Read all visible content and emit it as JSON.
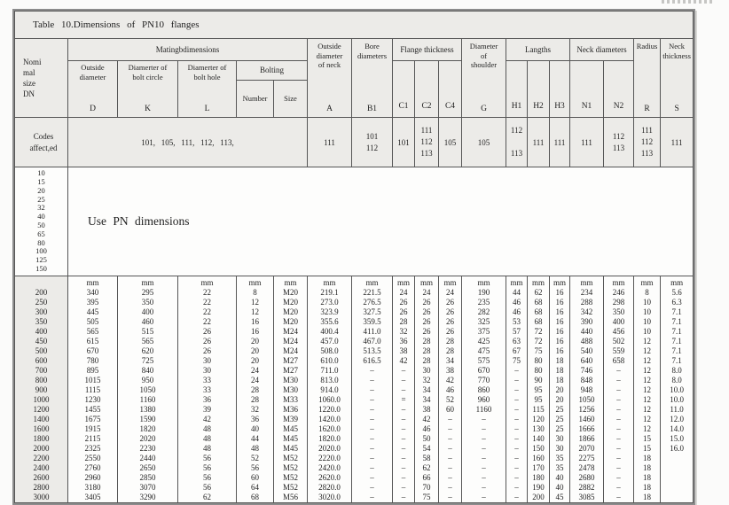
{
  "page": {
    "edge_fragment": "illegible-gray-text-strip"
  },
  "table": {
    "title": "Table 10.Dimensions of PN10 flanges",
    "header": {
      "nominal": [
        "Nomi",
        "mal",
        "size",
        "DN"
      ],
      "mating": "Matingbdimensions",
      "outside_d_label": [
        "Outside",
        "diameter"
      ],
      "outside_d_letter": "D",
      "bolt_circle_label": [
        "Diamerter of",
        "bolt circle"
      ],
      "bolt_circle_letter": "K",
      "bolt_hole_label": [
        "Diamerter of",
        "bolt hole"
      ],
      "bolt_hole_letter": "L",
      "bolting": "Bolting",
      "number": "Number",
      "size": "Size",
      "neck_od_label": [
        "Outside",
        "diameter",
        "of neck"
      ],
      "neck_od_letter": "A",
      "bore_label": [
        "Bore",
        "diameters"
      ],
      "bore_letter": "B1",
      "flange_thickness": "Flange thickness",
      "c1": "C1",
      "c2": "C2",
      "c4": "C4",
      "shoulder_label": [
        "Diameter",
        "of",
        "shoulder"
      ],
      "shoulder_letter": "G",
      "langths": "Langths",
      "h1": "H1",
      "h2": "H2",
      "h3": "H3",
      "neck_diameters": "Neck diameters",
      "n1": "N1",
      "n2": "N2",
      "radius_label": [
        "Radius"
      ],
      "radius_letter": "R",
      "neck_thickness_label": [
        "Neck",
        "thickness"
      ],
      "neck_thickness_letter": "S"
    },
    "codes_row": {
      "label": [
        "Codes",
        "affect,ed"
      ],
      "mating": "101,   105,   111,   112,   113,",
      "a": "111",
      "b1": [
        "101",
        "112"
      ],
      "c1": "101",
      "c2": [
        "111",
        "112",
        "113"
      ],
      "c4": "105",
      "g": "105",
      "h1": [
        "112",
        "",
        "113"
      ],
      "h2": "111",
      "h3": "111",
      "n1": "111",
      "n2": [
        "112",
        "113"
      ],
      "r": [
        "111",
        "112",
        "113"
      ],
      "s": "111"
    },
    "pn_row": {
      "dn_values": [
        "10",
        "15",
        "20",
        "25",
        "32",
        "40",
        "50",
        "65",
        "80",
        "100",
        "125",
        "150"
      ],
      "note": "Use PN dimensions"
    },
    "data": {
      "dn": [
        "",
        "200",
        "250",
        "300",
        "350",
        "400",
        "450",
        "500",
        "600",
        "700",
        "800",
        "900",
        "1000",
        "1200",
        "1400",
        "1600",
        "1800",
        "2000",
        "2200",
        "2400",
        "2600",
        "2800",
        "3000"
      ],
      "d": [
        "mm",
        "340",
        "395",
        "445",
        "505",
        "565",
        "615",
        "670",
        "780",
        "895",
        "1015",
        "1115",
        "1230",
        "1455",
        "1675",
        "1915",
        "2115",
        "2325",
        "2550",
        "2760",
        "2960",
        "3180",
        "3405"
      ],
      "k": [
        "mm",
        "295",
        "350",
        "400",
        "460",
        "515",
        "565",
        "620",
        "725",
        "840",
        "950",
        "1050",
        "1160",
        "1380",
        "1590",
        "1820",
        "2020",
        "2230",
        "2440",
        "2650",
        "2850",
        "3070",
        "3290"
      ],
      "l": [
        "mm",
        "22",
        "22",
        "22",
        "22",
        "26",
        "26",
        "26",
        "30",
        "30",
        "33",
        "33",
        "36",
        "39",
        "42",
        "48",
        "48",
        "48",
        "56",
        "56",
        "56",
        "56",
        "62"
      ],
      "number": [
        "mm",
        "8",
        "12",
        "12",
        "16",
        "16",
        "20",
        "20",
        "20",
        "24",
        "24",
        "28",
        "28",
        "32",
        "36",
        "40",
        "44",
        "48",
        "52",
        "56",
        "60",
        "64",
        "68"
      ],
      "size": [
        "mm",
        "M20",
        "M20",
        "M20",
        "M20",
        "M24",
        "M24",
        "M24",
        "M27",
        "M27",
        "M30",
        "M30",
        "M33",
        "M36",
        "M39",
        "M45",
        "M45",
        "M45",
        "M52",
        "M52",
        "M52",
        "M52",
        "M56"
      ],
      "a": [
        "mm",
        "219.1",
        "273.0",
        "323.9",
        "355.6",
        "400.4",
        "457.0",
        "508.0",
        "610.0",
        "711.0",
        "813.0",
        "914.0",
        "1060.0",
        "1220.0",
        "1420.0",
        "1620.0",
        "1820.0",
        "2020.0",
        "2220.0",
        "2420.0",
        "2620.0",
        "2820.0",
        "3020.0"
      ],
      "b1": [
        "mm",
        "221.5",
        "276.5",
        "327.5",
        "359.5",
        "411.0",
        "467.0",
        "513.5",
        "616.5",
        "–",
        "–",
        "–",
        "–",
        "–",
        "–",
        "–",
        "–",
        "–",
        "–",
        "–",
        "–",
        "–",
        "–"
      ],
      "c1": [
        "mm",
        "24",
        "26",
        "26",
        "28",
        "32",
        "36",
        "38",
        "42",
        "–",
        "–",
        "–",
        "=",
        "–",
        "–",
        "–",
        "–",
        "–",
        "–",
        "–",
        "–",
        "–",
        "–"
      ],
      "c2": [
        "mm",
        "24",
        "26",
        "26",
        "26",
        "26",
        "28",
        "28",
        "28",
        "30",
        "32",
        "34",
        "34",
        "38",
        "42",
        "46",
        "50",
        "54",
        "58",
        "62",
        "66",
        "70",
        "75"
      ],
      "c4": [
        "mm",
        "24",
        "26",
        "26",
        "26",
        "26",
        "28",
        "28",
        "34",
        "38",
        "42",
        "46",
        "52",
        "60",
        "–",
        "–",
        "–",
        "–",
        "–",
        "–",
        "–",
        "–",
        "–"
      ],
      "g": [
        "mm",
        "190",
        "235",
        "282",
        "325",
        "375",
        "425",
        "475",
        "575",
        "670",
        "770",
        "860",
        "960",
        "1160",
        "–",
        "–",
        "–",
        "–",
        "–",
        "–",
        "–",
        "–",
        "–"
      ],
      "h1": [
        "mm",
        "44",
        "46",
        "46",
        "53",
        "57",
        "63",
        "67",
        "75",
        "–",
        "–",
        "–",
        "–",
        "–",
        "–",
        "–",
        "–",
        "–",
        "–",
        "–",
        "–",
        "–",
        "–"
      ],
      "h2": [
        "mm",
        "62",
        "68",
        "68",
        "68",
        "72",
        "72",
        "75",
        "80",
        "80",
        "90",
        "95",
        "95",
        "115",
        "120",
        "130",
        "140",
        "150",
        "160",
        "170",
        "180",
        "190",
        "200"
      ],
      "h3": [
        "mm",
        "16",
        "16",
        "16",
        "16",
        "16",
        "16",
        "16",
        "18",
        "18",
        "18",
        "20",
        "20",
        "25",
        "25",
        "25",
        "30",
        "30",
        "35",
        "35",
        "40",
        "40",
        "45"
      ],
      "n1": [
        "mm",
        "234",
        "288",
        "342",
        "390",
        "440",
        "488",
        "540",
        "640",
        "746",
        "848",
        "948",
        "1050",
        "1256",
        "1460",
        "1666",
        "1866",
        "2070",
        "2275",
        "2478",
        "2680",
        "2882",
        "3085"
      ],
      "n2": [
        "mm",
        "246",
        "298",
        "350",
        "400",
        "456",
        "502",
        "559",
        "658",
        "–",
        "–",
        "–",
        "–",
        "–",
        "–",
        "–",
        "–",
        "–",
        "–",
        "–",
        "–",
        "–",
        "–"
      ],
      "r": [
        "mm",
        "8",
        "10",
        "10",
        "10",
        "10",
        "12",
        "12",
        "12",
        "12",
        "12",
        "12",
        "12",
        "12",
        "12",
        "12",
        "15",
        "15",
        "18",
        "18",
        "18",
        "18",
        "18"
      ],
      "s": [
        "mm",
        "5.6",
        "6.3",
        "7.1",
        "7.1",
        "7.1",
        "7.1",
        "7.1",
        "7.1",
        "8.0",
        "8.0",
        "10.0",
        "10.0",
        "11.0",
        "12.0",
        "14.0",
        "15.0",
        "16.0",
        "",
        "",
        "",
        "",
        ""
      ]
    }
  }
}
